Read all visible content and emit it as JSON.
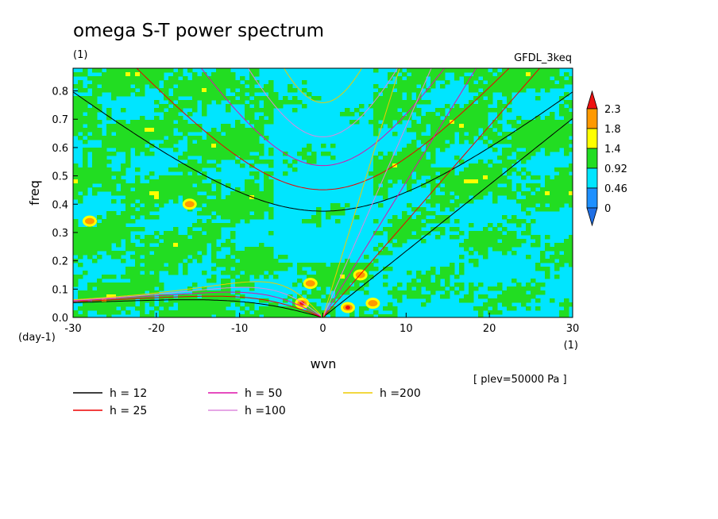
{
  "chart_data": {
    "type": "heatmap",
    "title": "omega S-T power spectrum",
    "subtitle_left": "(1)",
    "subtitle_right": "GFDL_3keq",
    "xlabel": "wvn",
    "xunit": "(1)",
    "ylabel": "freq",
    "yunit": "(day-1)",
    "xlim": [
      -30,
      30
    ],
    "ylim": [
      0,
      0.88
    ],
    "x_ticks": [
      -30,
      -20,
      -10,
      0,
      10,
      20,
      30
    ],
    "x_tick_labels": [
      "-30",
      "-20",
      "-10",
      "0",
      "10",
      "20",
      "30"
    ],
    "y_ticks": [
      0,
      0.1,
      0.2,
      0.3,
      0.4,
      0.5,
      0.6,
      0.7,
      0.8
    ],
    "y_tick_labels": [
      "0.0",
      "0.1",
      "0.2",
      "0.3",
      "0.4",
      "0.5",
      "0.6",
      "0.7",
      "0.8"
    ],
    "annotation": "[ plev=50000 Pa ]",
    "colorbar": {
      "levels": [
        0,
        0.46,
        0.92,
        1.4,
        1.8,
        2.3
      ],
      "labels": [
        "0",
        "0.46",
        "0.92",
        "1.4",
        "1.8",
        "2.3"
      ],
      "colors": [
        "#1e90ff",
        "#00e5ff",
        "#22dd22",
        "#ffff00",
        "#ff9900",
        "#ee1111"
      ],
      "under_color": "#1f6fe5",
      "over_color": "#ee1111"
    },
    "background_field_levels": {
      "field_color_main": "#00e5ff",
      "field_color_mid": "#22dd22"
    },
    "dispersion_curves": [
      {
        "name": "h = 12",
        "h": 12,
        "color": "#000000"
      },
      {
        "name": "h = 25",
        "h": 25,
        "color": "#ee0000"
      },
      {
        "name": "h = 50",
        "h": 50,
        "color": "#dd11aa"
      },
      {
        "name": "h =100",
        "h": 100,
        "color": "#dd88dd"
      },
      {
        "name": "h =200",
        "h": 200,
        "color": "#eecc00"
      }
    ]
  }
}
